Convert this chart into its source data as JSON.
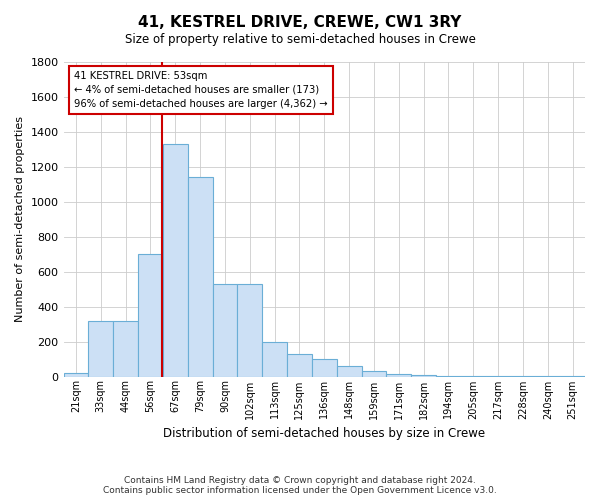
{
  "title": "41, KESTREL DRIVE, CREWE, CW1 3RY",
  "subtitle": "Size of property relative to semi-detached houses in Crewe",
  "xlabel": "Distribution of semi-detached houses by size in Crewe",
  "ylabel": "Number of semi-detached properties",
  "footer_line1": "Contains HM Land Registry data © Crown copyright and database right 2024.",
  "footer_line2": "Contains public sector information licensed under the Open Government Licence v3.0.",
  "annotation_line1": "41 KESTREL DRIVE: 53sqm",
  "annotation_line2": "← 4% of semi-detached houses are smaller (173)",
  "annotation_line3": "96% of semi-detached houses are larger (4,362) →",
  "bar_color": "#cce0f5",
  "bar_edge_color": "#6aaed6",
  "redline_color": "#cc0000",
  "grid_color": "#cccccc",
  "background_color": "#ffffff",
  "ylim": [
    0,
    1800
  ],
  "yticks": [
    0,
    200,
    400,
    600,
    800,
    1000,
    1200,
    1400,
    1600,
    1800
  ],
  "categories": [
    "21sqm",
    "33sqm",
    "44sqm",
    "56sqm",
    "67sqm",
    "79sqm",
    "90sqm",
    "102sqm",
    "113sqm",
    "125sqm",
    "136sqm",
    "148sqm",
    "159sqm",
    "171sqm",
    "182sqm",
    "194sqm",
    "205sqm",
    "217sqm",
    "228sqm",
    "240sqm",
    "251sqm"
  ],
  "values": [
    18,
    315,
    315,
    700,
    1330,
    1140,
    530,
    530,
    200,
    130,
    100,
    60,
    30,
    15,
    10,
    5,
    3,
    2,
    2,
    2,
    2
  ],
  "redline_x": 3.45
}
